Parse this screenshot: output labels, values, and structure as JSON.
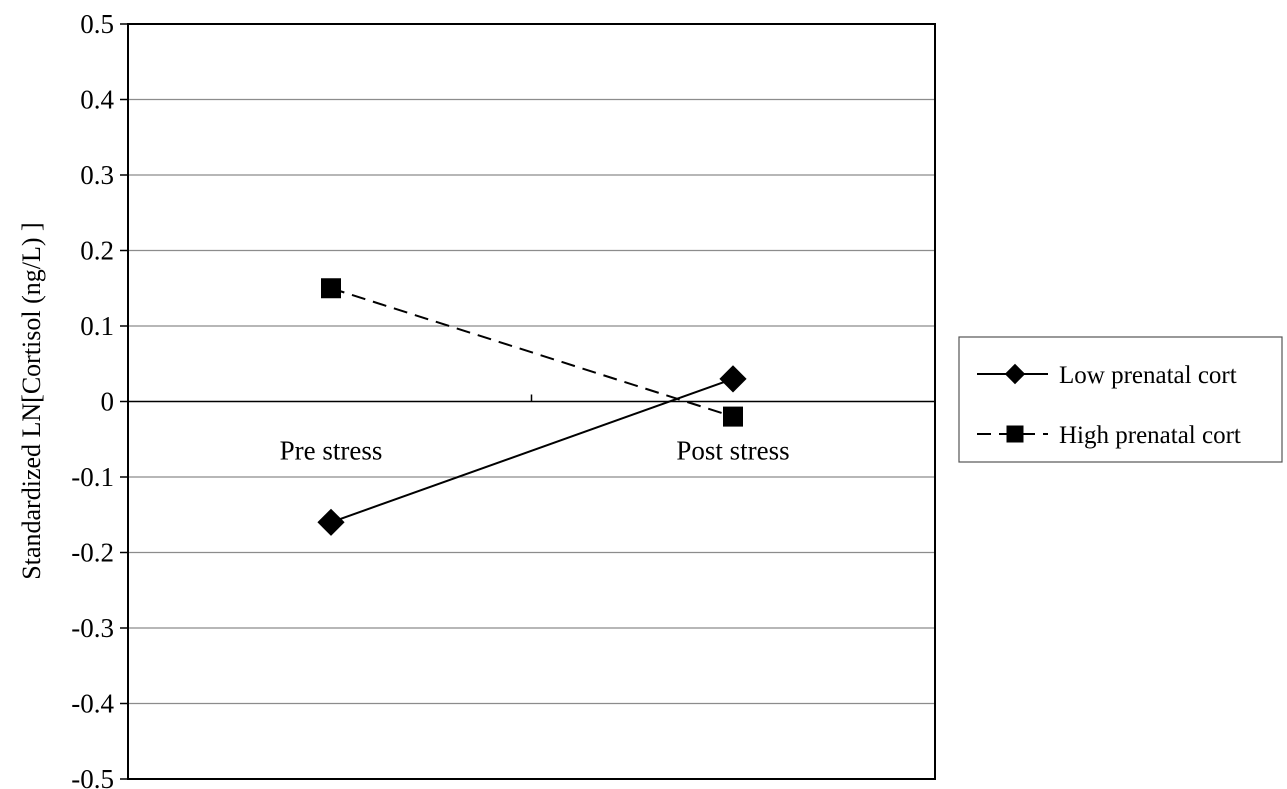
{
  "chart_data": {
    "type": "line",
    "title": "",
    "xlabel": "",
    "ylabel": "Standardized LN[Cortisol (ng/L) ]",
    "categories": [
      "Pre stress",
      "Post stress"
    ],
    "ylim": [
      -0.5,
      0.5
    ],
    "yticks": [
      0.5,
      0.4,
      0.3,
      0.2,
      0.1,
      0,
      -0.1,
      -0.2,
      -0.3,
      -0.4,
      -0.5
    ],
    "ytick_labels": [
      "0.5",
      "0.4",
      "0.3",
      "0.2",
      "0.1",
      "0",
      "-0.1",
      "-0.2",
      "-0.3",
      "-0.4",
      "-0.5"
    ],
    "grid": true,
    "legend_position": "right",
    "series": [
      {
        "name": "Low prenatal cort",
        "values": [
          -0.16,
          0.03
        ],
        "marker": "diamond",
        "line": "solid",
        "color": "#000000"
      },
      {
        "name": "High prenatal cort",
        "values": [
          0.15,
          -0.02
        ],
        "marker": "square",
        "line": "dashed",
        "color": "#000000"
      }
    ]
  }
}
